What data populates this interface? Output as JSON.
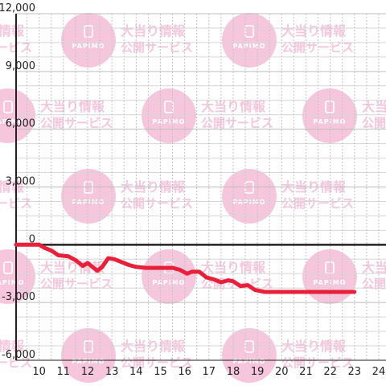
{
  "watermark": {
    "headline": "大当り情報",
    "subline": "公開サービス",
    "brand": "PAPIMO",
    "color": "#f6c7dc"
  },
  "chart_data": {
    "type": "line",
    "x_ticks": [
      10,
      11,
      12,
      13,
      14,
      15,
      16,
      17,
      18,
      19,
      20,
      21,
      22,
      23,
      24
    ],
    "xlim": [
      9.05,
      24.3
    ],
    "y_ticks": [
      -6000,
      -3000,
      0,
      3000,
      6000,
      9000,
      12000
    ],
    "y_tick_labels": [
      "-6,000",
      "-3,000",
      "0",
      "3,000",
      "6,000",
      "9,000",
      "12,000"
    ],
    "ylim": [
      -6000,
      12000
    ],
    "grid": true,
    "series": [
      {
        "color": "#e8213b",
        "points": [
          [
            9.05,
            0
          ],
          [
            10.0,
            0
          ],
          [
            10.2,
            -150
          ],
          [
            10.5,
            -300
          ],
          [
            10.8,
            -550
          ],
          [
            11.2,
            -600
          ],
          [
            11.5,
            -800
          ],
          [
            11.8,
            -1100
          ],
          [
            12.0,
            -950
          ],
          [
            12.15,
            -1100
          ],
          [
            12.4,
            -1350
          ],
          [
            12.6,
            -1150
          ],
          [
            12.85,
            -700
          ],
          [
            13.1,
            -750
          ],
          [
            13.4,
            -900
          ],
          [
            13.7,
            -1050
          ],
          [
            14.0,
            -1150
          ],
          [
            14.4,
            -1200
          ],
          [
            15.0,
            -1200
          ],
          [
            15.5,
            -1200
          ],
          [
            15.8,
            -1300
          ],
          [
            16.1,
            -1500
          ],
          [
            16.3,
            -1400
          ],
          [
            16.6,
            -1400
          ],
          [
            16.9,
            -1700
          ],
          [
            17.2,
            -1800
          ],
          [
            17.5,
            -1950
          ],
          [
            17.8,
            -1850
          ],
          [
            18.0,
            -1900
          ],
          [
            18.3,
            -2150
          ],
          [
            18.6,
            -2100
          ],
          [
            18.9,
            -2350
          ],
          [
            19.3,
            -2450
          ],
          [
            20.0,
            -2450
          ],
          [
            21.0,
            -2450
          ],
          [
            22.0,
            -2450
          ],
          [
            23.0,
            -2450
          ]
        ]
      }
    ]
  }
}
